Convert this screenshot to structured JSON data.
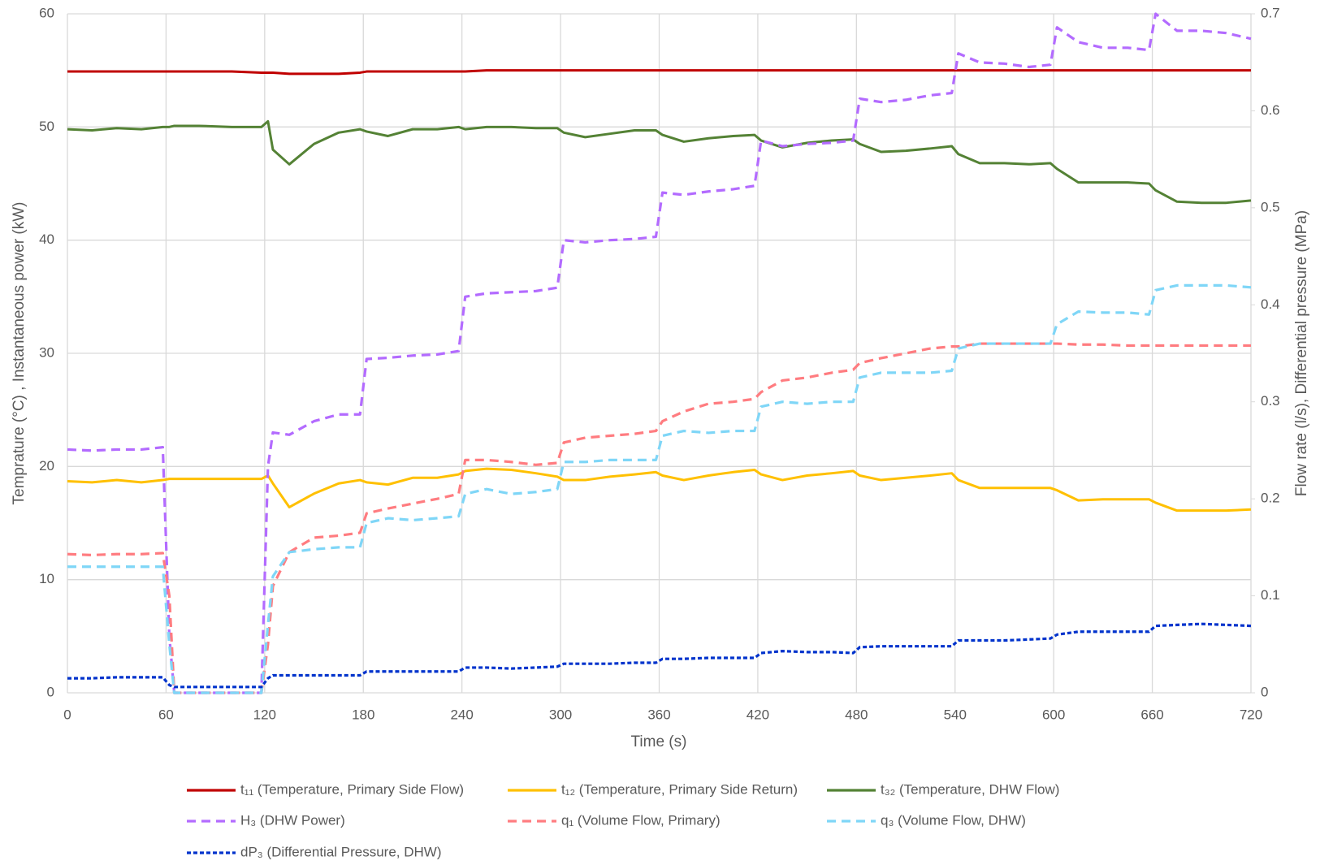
{
  "chart_data": {
    "type": "line",
    "x_label": "Time (s)",
    "y_label": "Temprature (°C) , Instantaneous power (kW)",
    "y2_label": "Flow rate (l/s), Differential pressure (MPa)",
    "x": [
      0,
      15,
      30,
      45,
      58,
      62,
      65,
      80,
      100,
      118,
      122,
      125,
      135,
      150,
      165,
      178,
      182,
      195,
      210,
      225,
      238,
      242,
      255,
      270,
      285,
      298,
      302,
      315,
      330,
      345,
      358,
      362,
      375,
      390,
      405,
      418,
      422,
      435,
      450,
      465,
      478,
      482,
      495,
      510,
      525,
      538,
      542,
      555,
      570,
      585,
      598,
      602,
      615,
      630,
      645,
      658,
      662,
      675,
      690,
      705,
      720
    ],
    "xlim": [
      0,
      720
    ],
    "xticks": [
      0,
      60,
      120,
      180,
      240,
      300,
      360,
      420,
      480,
      540,
      600,
      660,
      720
    ],
    "ylim": [
      0,
      60
    ],
    "yticks": [
      0,
      10,
      20,
      30,
      40,
      50,
      60
    ],
    "y2lim": [
      0,
      0.7
    ],
    "y2ticks": [
      0,
      0.1,
      0.2,
      0.3,
      0.4,
      0.5,
      0.6,
      0.7
    ],
    "grid": true,
    "legend": "bottom",
    "series": [
      {
        "name": "t₁₁ (Temperature, Primary Side Flow)",
        "color": "#c00000",
        "dash": "solid",
        "values": [
          54.9,
          54.9,
          54.9,
          54.9,
          54.9,
          54.9,
          54.9,
          54.9,
          54.9,
          54.8,
          54.8,
          54.8,
          54.7,
          54.7,
          54.7,
          54.8,
          54.9,
          54.9,
          54.9,
          54.9,
          54.9,
          54.9,
          55,
          55,
          55,
          55,
          55,
          55,
          55,
          55,
          55,
          55,
          55,
          55,
          55,
          55,
          55,
          55,
          55,
          55,
          55,
          55,
          55,
          55,
          55,
          55,
          55,
          55,
          55,
          55,
          55,
          55,
          55,
          55,
          55,
          55,
          55,
          55,
          55,
          55,
          55
        ]
      },
      {
        "name": "t₁₂ (Temperature, Primary Side Return)",
        "color": "#ffc000",
        "dash": "solid",
        "values": [
          18.7,
          18.6,
          18.8,
          18.6,
          18.8,
          18.9,
          18.9,
          18.9,
          18.9,
          18.9,
          19.2,
          18.5,
          16.4,
          17.6,
          18.5,
          18.8,
          18.6,
          18.4,
          19,
          19,
          19.3,
          19.6,
          19.8,
          19.7,
          19.4,
          19.1,
          18.8,
          18.8,
          19.1,
          19.3,
          19.5,
          19.2,
          18.8,
          19.2,
          19.5,
          19.7,
          19.3,
          18.8,
          19.2,
          19.4,
          19.6,
          19.2,
          18.8,
          19,
          19.2,
          19.4,
          18.8,
          18.1,
          18.1,
          18.1,
          18.1,
          17.9,
          17,
          17.1,
          17.1,
          17.1,
          16.8,
          16.1,
          16.1,
          16.1,
          16.2
        ]
      },
      {
        "name": "t₃₂ (Temperature, DHW Flow)",
        "color": "#548235",
        "dash": "solid",
        "values": [
          49.8,
          49.7,
          49.9,
          49.8,
          50,
          50,
          50.1,
          50.1,
          50,
          50,
          50.5,
          48,
          46.7,
          48.5,
          49.5,
          49.8,
          49.6,
          49.2,
          49.8,
          49.8,
          50,
          49.8,
          50,
          50,
          49.9,
          49.9,
          49.5,
          49.1,
          49.4,
          49.7,
          49.7,
          49.3,
          48.7,
          49,
          49.2,
          49.3,
          48.8,
          48.2,
          48.6,
          48.8,
          48.9,
          48.5,
          47.8,
          47.9,
          48.1,
          48.3,
          47.6,
          46.8,
          46.8,
          46.7,
          46.8,
          46.3,
          45.1,
          45.1,
          45.1,
          45,
          44.4,
          43.4,
          43.3,
          43.3,
          43.5
        ]
      },
      {
        "name": "H₃ (DHW Power)",
        "color": "#b36bff",
        "dash": "dashed",
        "values": [
          21.5,
          21.4,
          21.5,
          21.5,
          21.7,
          5,
          0,
          0,
          0,
          0,
          20,
          23,
          22.8,
          24,
          24.6,
          24.6,
          29.5,
          29.6,
          29.8,
          29.9,
          30.2,
          35,
          35.3,
          35.4,
          35.5,
          35.8,
          40,
          39.8,
          40,
          40.1,
          40.3,
          44.2,
          44,
          44.3,
          44.5,
          44.8,
          48.8,
          48.3,
          48.5,
          48.6,
          48.8,
          52.5,
          52.2,
          52.4,
          52.8,
          53,
          56.5,
          55.7,
          55.6,
          55.3,
          55.5,
          58.8,
          57.5,
          57,
          57,
          56.8,
          60,
          58.5,
          58.5,
          58.3,
          57.8
        ]
      },
      {
        "name": "q₁ (Volume Flow, Primary)",
        "color": "#ff7c80",
        "dash": "dashed",
        "axis": "y2",
        "values": [
          0.143,
          0.142,
          0.143,
          0.143,
          0.144,
          0.1,
          0,
          0,
          0,
          0,
          0.05,
          0.11,
          0.145,
          0.16,
          0.162,
          0.165,
          0.185,
          0.19,
          0.195,
          0.2,
          0.205,
          0.24,
          0.24,
          0.238,
          0.235,
          0.237,
          0.258,
          0.263,
          0.265,
          0.267,
          0.27,
          0.28,
          0.29,
          0.298,
          0.3,
          0.303,
          0.31,
          0.322,
          0.325,
          0.33,
          0.333,
          0.34,
          0.345,
          0.35,
          0.355,
          0.357,
          0.357,
          0.36,
          0.36,
          0.36,
          0.36,
          0.36,
          0.359,
          0.359,
          0.358,
          0.358,
          0.358,
          0.358,
          0.358,
          0.358,
          0.358
        ]
      },
      {
        "name": "q₃ (Volume Flow, DHW)",
        "color": "#7fd6f7",
        "dash": "dashed",
        "axis": "y2",
        "values": [
          0.13,
          0.13,
          0.13,
          0.13,
          0.13,
          0.05,
          0,
          0,
          0,
          0,
          0.07,
          0.12,
          0.145,
          0.148,
          0.15,
          0.15,
          0.175,
          0.18,
          0.178,
          0.18,
          0.182,
          0.205,
          0.21,
          0.205,
          0.207,
          0.21,
          0.238,
          0.238,
          0.24,
          0.24,
          0.24,
          0.265,
          0.27,
          0.268,
          0.27,
          0.27,
          0.295,
          0.3,
          0.298,
          0.3,
          0.3,
          0.325,
          0.33,
          0.33,
          0.33,
          0.332,
          0.355,
          0.36,
          0.36,
          0.36,
          0.36,
          0.38,
          0.393,
          0.392,
          0.392,
          0.39,
          0.415,
          0.42,
          0.42,
          0.42,
          0.418
        ]
      },
      {
        "name": "dP₃ (Differential Pressure, DHW)",
        "color": "#0033cc",
        "dash": "dotted",
        "axis": "y2",
        "values": [
          0.015,
          0.015,
          0.016,
          0.016,
          0.016,
          0.008,
          0.006,
          0.006,
          0.006,
          0.006,
          0.015,
          0.018,
          0.018,
          0.018,
          0.018,
          0.018,
          0.022,
          0.022,
          0.022,
          0.022,
          0.022,
          0.026,
          0.026,
          0.025,
          0.026,
          0.027,
          0.03,
          0.03,
          0.03,
          0.031,
          0.031,
          0.035,
          0.035,
          0.036,
          0.036,
          0.036,
          0.041,
          0.043,
          0.042,
          0.042,
          0.041,
          0.047,
          0.048,
          0.048,
          0.048,
          0.048,
          0.054,
          0.054,
          0.054,
          0.055,
          0.056,
          0.06,
          0.063,
          0.063,
          0.063,
          0.063,
          0.069,
          0.07,
          0.071,
          0.07,
          0.069
        ]
      }
    ]
  }
}
